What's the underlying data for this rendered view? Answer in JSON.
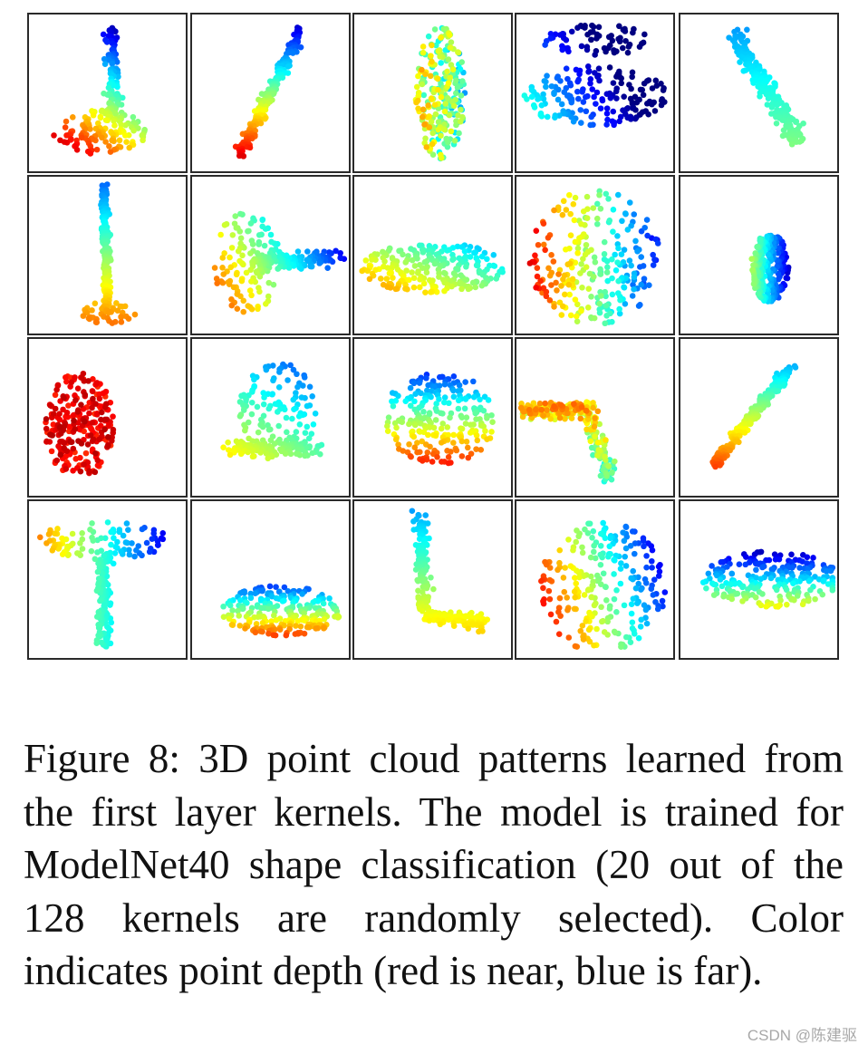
{
  "figure": {
    "grid": {
      "rows": 4,
      "cols": 5
    },
    "colormap": "jet",
    "colormap_meaning": {
      "near": "#b30000",
      "far": "#0000b3"
    },
    "panels": [
      {
        "id": 1,
        "shape": "flared-column"
      },
      {
        "id": 2,
        "shape": "diagonal-rod"
      },
      {
        "id": 3,
        "shape": "vertical-slab"
      },
      {
        "id": 4,
        "shape": "stacked-discs"
      },
      {
        "id": 5,
        "shape": "curved-band"
      },
      {
        "id": 6,
        "shape": "vertical-pillar"
      },
      {
        "id": 7,
        "shape": "corner-bend"
      },
      {
        "id": 8,
        "shape": "wedge"
      },
      {
        "id": 9,
        "shape": "sphere"
      },
      {
        "id": 10,
        "shape": "small-blob"
      },
      {
        "id": 11,
        "shape": "torus"
      },
      {
        "id": 12,
        "shape": "open-corner"
      },
      {
        "id": 13,
        "shape": "tilted-plane"
      },
      {
        "id": 14,
        "shape": "elbow"
      },
      {
        "id": 15,
        "shape": "diagonal-streak"
      },
      {
        "id": 16,
        "shape": "mushroom"
      },
      {
        "id": 17,
        "shape": "flat-box"
      },
      {
        "id": 18,
        "shape": "l-shape"
      },
      {
        "id": 19,
        "shape": "diagonal-sphere"
      },
      {
        "id": 20,
        "shape": "flat-slab"
      }
    ]
  },
  "caption": "Figure 8: 3D point cloud patterns learned from the first layer kernels. The model is trained for ModelNet40 shape classification (20 out of the 128 kernels are randomly selected). Color indicates point depth (red is near, blue is far).",
  "watermark": "CSDN @陈建驱"
}
